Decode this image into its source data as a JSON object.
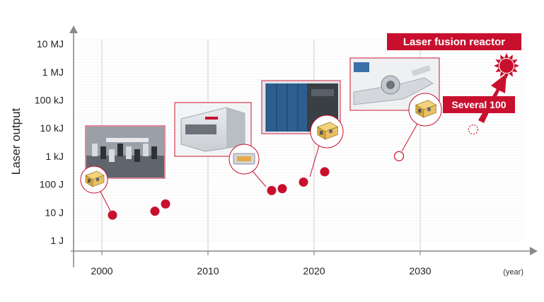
{
  "chart_data": {
    "type": "scatter",
    "title": "",
    "ylabel": "Laser output",
    "xlabel": "",
    "x_unit": "(year)",
    "y_scale": "log",
    "x_ticks": [
      "2000",
      "2010",
      "2020",
      "2030"
    ],
    "y_ticks": [
      "1 J",
      "10 J",
      "100 J",
      "1 kJ",
      "10 kJ",
      "100 kJ",
      "1 MJ",
      "10 MJ"
    ],
    "xlim": [
      1997,
      2041
    ],
    "ylim_joules": [
      0.5,
      30000000
    ],
    "grid": true,
    "series": [
      {
        "style": "filled",
        "points": [
          {
            "x": 2001,
            "y": 8
          },
          {
            "x": 2005,
            "y": 11
          },
          {
            "x": 2006,
            "y": 20
          },
          {
            "x": 2016,
            "y": 60
          },
          {
            "x": 2017,
            "y": 70
          },
          {
            "x": 2019,
            "y": 120
          },
          {
            "x": 2021,
            "y": 280
          }
        ]
      },
      {
        "style": "hollow",
        "points": [
          {
            "x": 2028,
            "y": 1000
          },
          {
            "x": 2035,
            "y": 9000
          }
        ]
      }
    ],
    "annotations": {
      "several": "Several 100",
      "reactor": "Laser fusion reactor"
    },
    "colors": {
      "accent": "#c8102e",
      "axis": "#8a8a8a",
      "grid": "#e0e0e0"
    }
  }
}
